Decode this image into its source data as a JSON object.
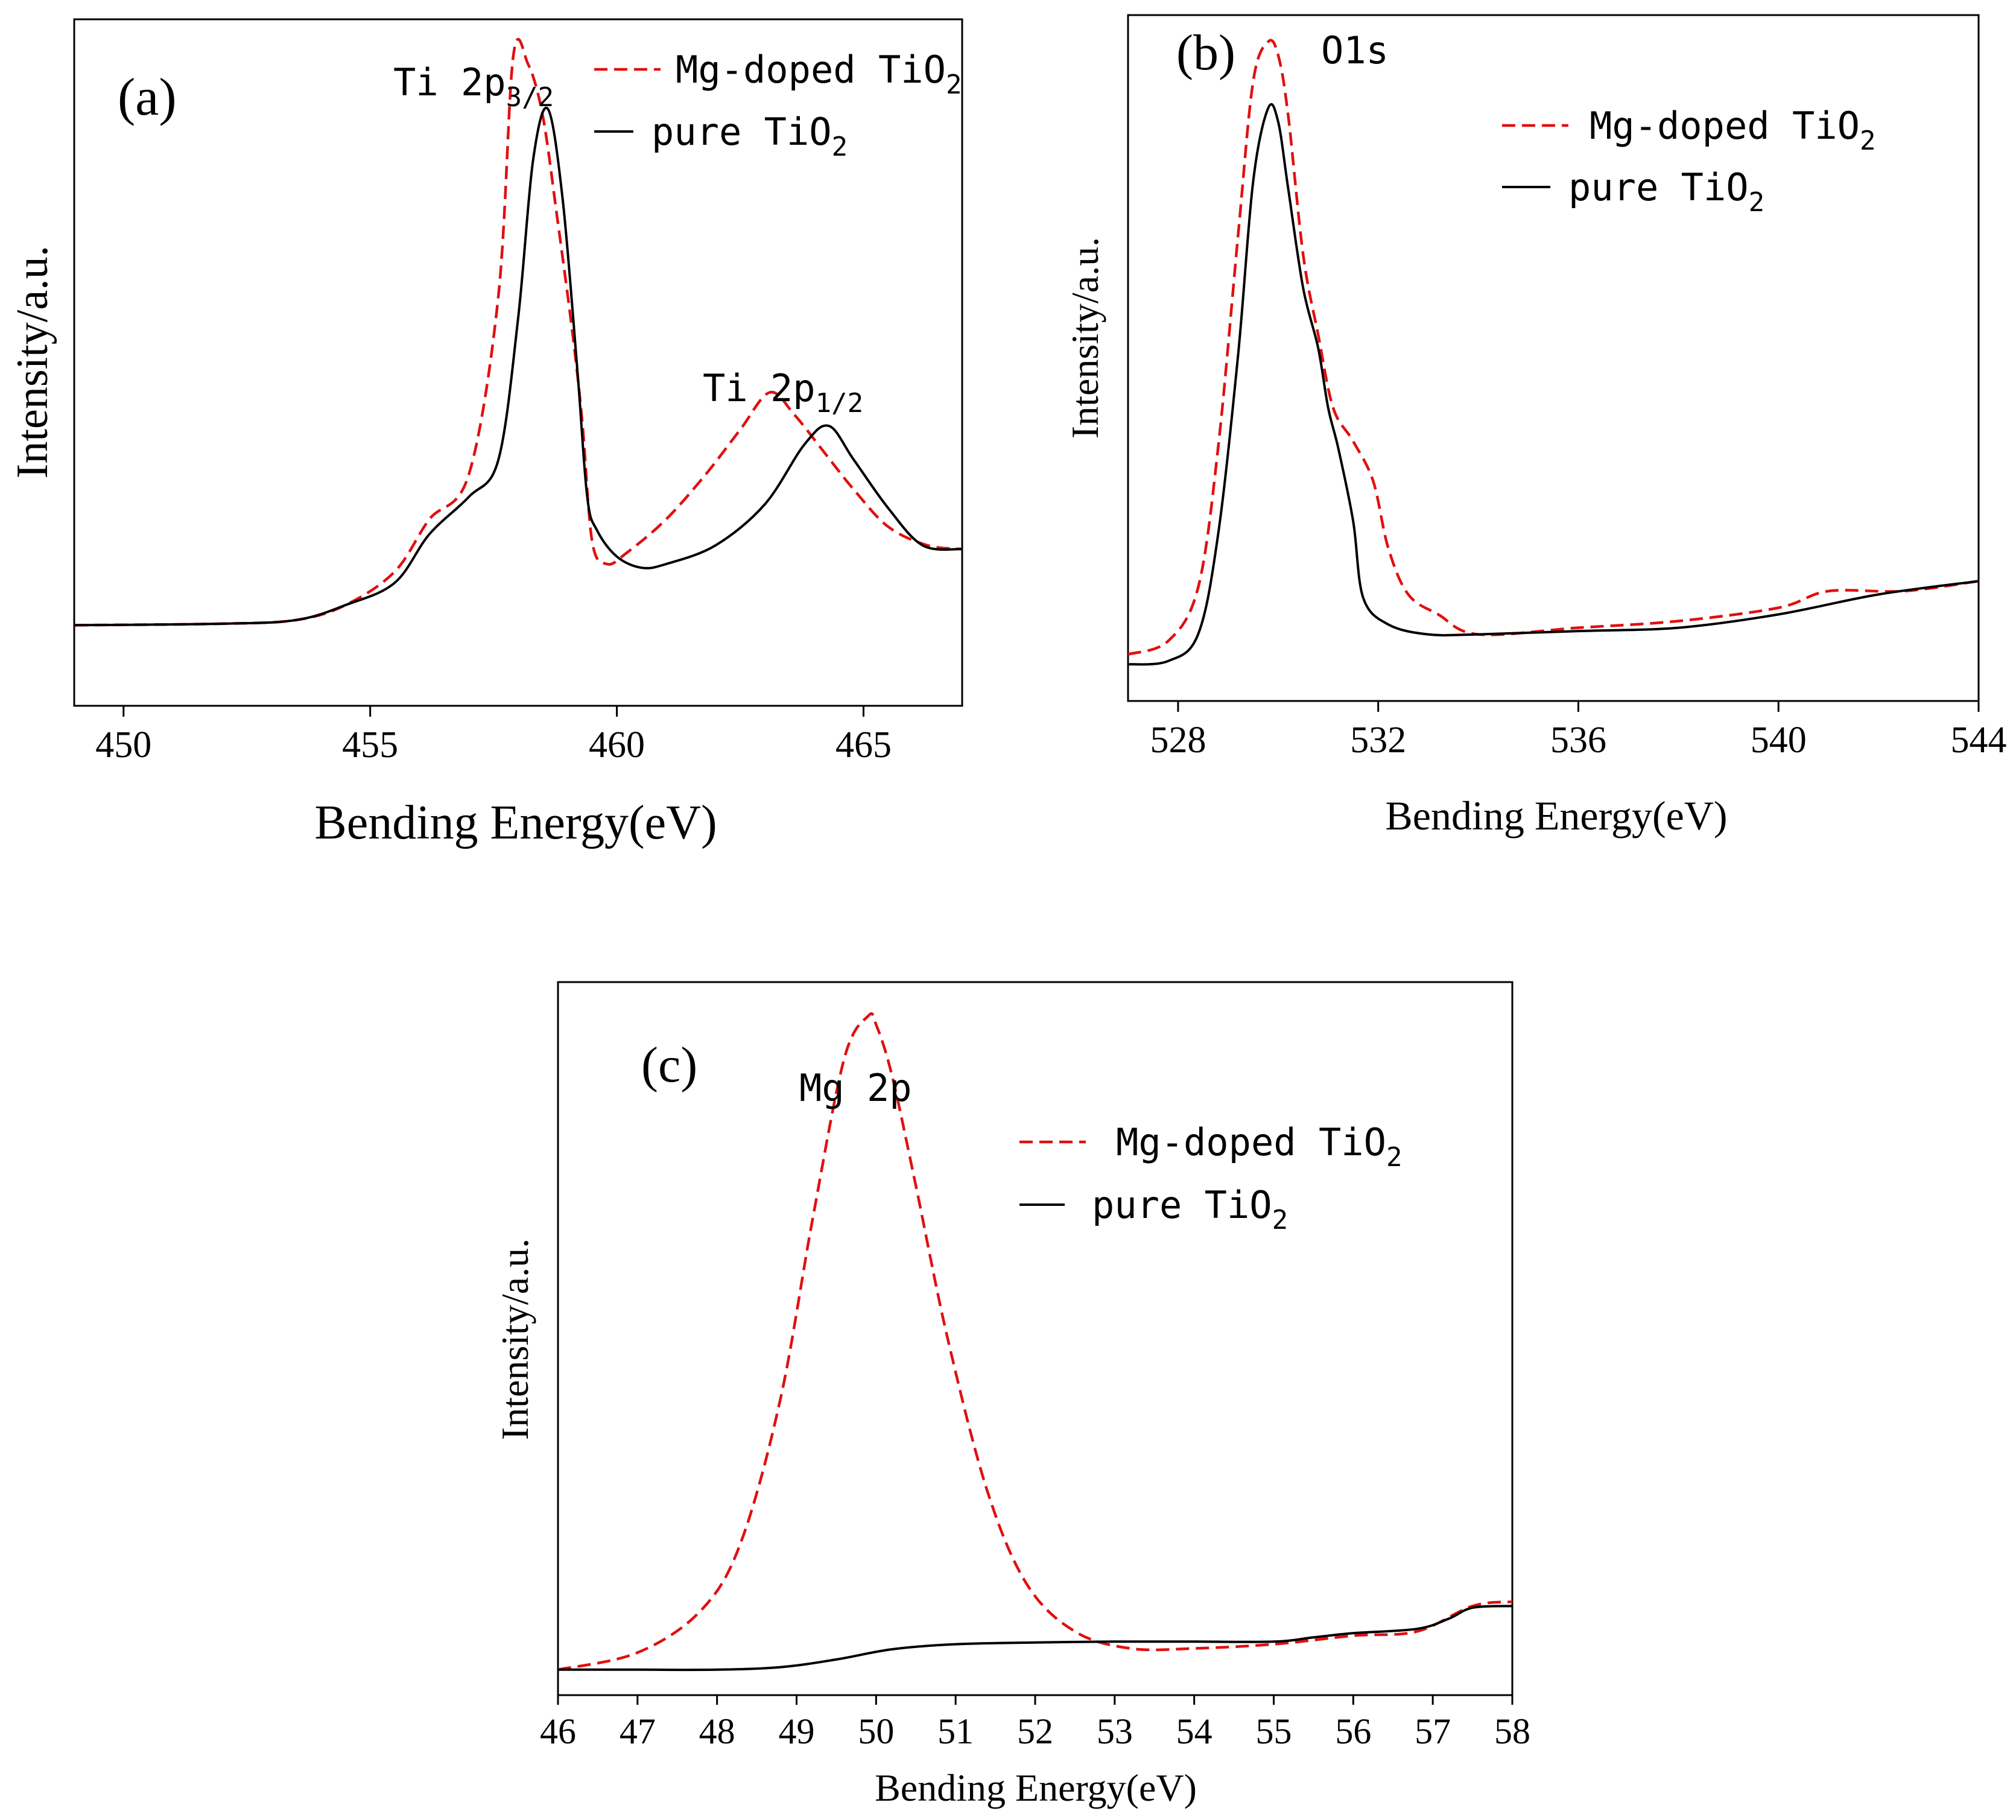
{
  "colors": {
    "doped": "#e01010",
    "pure": "#000000",
    "axis": "#000000"
  },
  "chart_data": [
    {
      "type": "line",
      "panel_label": "(a)",
      "xlabel": "Bending Energy(eV)",
      "ylabel": "Intensity/a.u.",
      "xlim": [
        449,
        467
      ],
      "xticks": [
        450,
        455,
        460,
        465
      ],
      "tick_labels": [
        "450",
        "455",
        "460",
        "465"
      ],
      "annotations": [
        {
          "text": "Ti 2p",
          "sub": "3/2",
          "x": 458.0
        },
        {
          "text": "Ti 2p",
          "sub": "1/2",
          "x": 463.3
        }
      ],
      "legend": [
        {
          "label": "Mg-doped TiO",
          "sub": "2",
          "style": "dashed",
          "color": "#e01010"
        },
        {
          "label": "pure TiO",
          "sub": "2",
          "style": "solid",
          "color": "#000000"
        }
      ],
      "series": [
        {
          "name": "Mg-doped TiO2",
          "x": [
            449.0,
            452.0,
            453.5,
            454.5,
            455.5,
            456.2,
            457.0,
            457.6,
            457.9,
            458.2,
            458.5,
            458.8,
            459.1,
            459.3,
            459.5,
            459.8,
            460.2,
            461.0,
            461.8,
            462.5,
            463.1,
            463.6,
            464.2,
            464.8,
            465.5,
            466.3,
            467.0
          ],
          "y": [
            0.108,
            0.11,
            0.115,
            0.135,
            0.18,
            0.25,
            0.31,
            0.55,
            0.87,
            0.86,
            0.79,
            0.65,
            0.5,
            0.38,
            0.22,
            0.19,
            0.205,
            0.25,
            0.31,
            0.37,
            0.42,
            0.39,
            0.34,
            0.29,
            0.24,
            0.215,
            0.21
          ]
        },
        {
          "name": "pure TiO2",
          "x": [
            449.0,
            452.0,
            453.5,
            454.5,
            455.5,
            456.2,
            457.0,
            457.6,
            458.0,
            458.3,
            458.6,
            458.9,
            459.2,
            459.4,
            459.6,
            460.0,
            460.5,
            461.0,
            462.0,
            463.0,
            463.8,
            464.3,
            464.8,
            465.5,
            466.2,
            467.0
          ],
          "y": [
            0.108,
            0.11,
            0.115,
            0.135,
            0.165,
            0.23,
            0.28,
            0.33,
            0.52,
            0.73,
            0.8,
            0.68,
            0.45,
            0.28,
            0.235,
            0.2,
            0.185,
            0.19,
            0.215,
            0.27,
            0.35,
            0.375,
            0.33,
            0.265,
            0.215,
            0.21
          ]
        }
      ]
    },
    {
      "type": "line",
      "panel_label": "(b)",
      "xlabel": "Bending Energy(eV)",
      "ylabel": "Intensity/a.u.",
      "xlim": [
        527,
        544
      ],
      "xticks": [
        528,
        532,
        536,
        540,
        544
      ],
      "tick_labels": [
        "528",
        "532",
        "536",
        "540",
        "544"
      ],
      "annotations": [
        {
          "text": "O1s",
          "sub": "",
          "x": 530.5
        }
      ],
      "legend": [
        {
          "label": "Mg-doped TiO",
          "sub": "2",
          "style": "dashed",
          "color": "#e01010"
        },
        {
          "label": "pure TiO",
          "sub": "2",
          "style": "solid",
          "color": "#000000"
        }
      ],
      "series": [
        {
          "name": "Mg-doped TiO2",
          "x": [
            527.0,
            527.8,
            528.4,
            528.8,
            529.2,
            529.5,
            529.8,
            530.0,
            530.2,
            530.5,
            530.8,
            531.1,
            531.5,
            531.9,
            532.2,
            532.6,
            533.2,
            534.0,
            536.0,
            538.0,
            540.0,
            541.0,
            542.5,
            544.0
          ],
          "y": [
            0.07,
            0.09,
            0.17,
            0.38,
            0.7,
            0.93,
            0.99,
            0.97,
            0.88,
            0.67,
            0.55,
            0.44,
            0.39,
            0.33,
            0.23,
            0.16,
            0.13,
            0.1,
            0.11,
            0.12,
            0.14,
            0.165,
            0.165,
            0.18
          ]
        },
        {
          "name": "pure TiO2",
          "x": [
            527.0,
            527.8,
            528.4,
            528.8,
            529.2,
            529.5,
            529.8,
            530.0,
            530.2,
            530.5,
            530.8,
            531.0,
            531.2,
            531.5,
            531.7,
            532.2,
            533.0,
            534.0,
            536.0,
            538.0,
            540.0,
            542.0,
            544.0
          ],
          "y": [
            0.055,
            0.06,
            0.1,
            0.25,
            0.52,
            0.78,
            0.89,
            0.87,
            0.77,
            0.62,
            0.53,
            0.44,
            0.38,
            0.27,
            0.155,
            0.115,
            0.1,
            0.1,
            0.105,
            0.11,
            0.13,
            0.16,
            0.18
          ]
        }
      ]
    },
    {
      "type": "line",
      "panel_label": "(c)",
      "xlabel": "Bending Energy(eV)",
      "ylabel": "Intensity/a.u.",
      "xlim": [
        46,
        58
      ],
      "xticks": [
        46,
        47,
        48,
        49,
        50,
        51,
        52,
        53,
        54,
        55,
        56,
        57,
        58
      ],
      "tick_labels": [
        "46",
        "47",
        "48",
        "49",
        "50",
        "51",
        "52",
        "53",
        "54",
        "55",
        "56",
        "57",
        "58"
      ],
      "annotations": [
        {
          "text": "Mg 2p",
          "sub": "",
          "x": 49.95
        }
      ],
      "legend": [
        {
          "label": "Mg-doped TiO",
          "sub": "2",
          "style": "dashed",
          "color": "#e01010"
        },
        {
          "label": "pure TiO",
          "sub": "2",
          "style": "solid",
          "color": "#000000"
        }
      ],
      "series": [
        {
          "name": "Mg-doped TiO2",
          "x": [
            46.0,
            47.0,
            47.8,
            48.3,
            48.8,
            49.2,
            49.6,
            49.9,
            50.0,
            50.2,
            50.5,
            50.9,
            51.4,
            51.9,
            52.5,
            53.2,
            54.0,
            55.0,
            56.0,
            56.8,
            57.5,
            58.0
          ],
          "y": [
            0.03,
            0.05,
            0.1,
            0.18,
            0.35,
            0.56,
            0.75,
            0.8,
            0.79,
            0.73,
            0.6,
            0.42,
            0.24,
            0.13,
            0.075,
            0.055,
            0.055,
            0.06,
            0.07,
            0.075,
            0.105,
            0.11
          ]
        },
        {
          "name": "pure TiO2",
          "x": [
            46.0,
            47.0,
            48.0,
            48.8,
            49.5,
            50.2,
            51.0,
            52.0,
            53.0,
            54.0,
            55.0,
            55.5,
            56.0,
            56.8,
            57.2,
            57.5,
            58.0
          ],
          "y": [
            0.03,
            0.03,
            0.03,
            0.033,
            0.042,
            0.054,
            0.06,
            0.062,
            0.063,
            0.063,
            0.063,
            0.068,
            0.073,
            0.078,
            0.09,
            0.103,
            0.105
          ]
        }
      ]
    }
  ]
}
